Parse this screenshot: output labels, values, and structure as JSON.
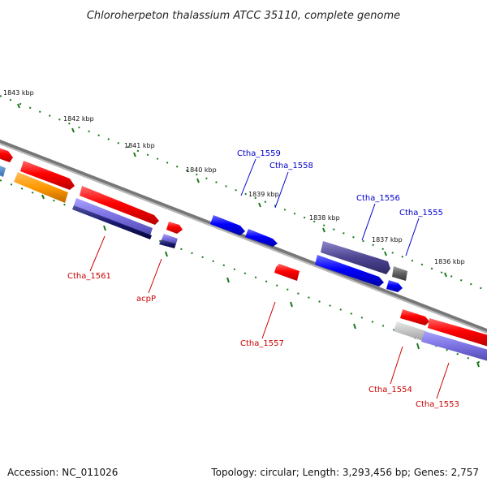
{
  "title": "Chloroherpeton thalassium ATCC 35110, complete genome",
  "ruler": {
    "ticks": [
      "1843 kbp",
      "1842 kbp",
      "1841 kbp",
      "1840 kbp",
      "1839 kbp",
      "1838 kbp",
      "1837 kbp",
      "1836 kbp"
    ]
  },
  "genes_forward": [
    "Ctha_1559",
    "Ctha_1558",
    "Ctha_1556",
    "Ctha_1555"
  ],
  "genes_reverse": [
    "Ctha_1561",
    "acpP",
    "Ctha_1557",
    "Ctha_1554",
    "Ctha_1553"
  ],
  "colors": {
    "label_forward": "#0000cc",
    "label_reverse": "#cc0000",
    "backbone": "#7a7a7a",
    "tick_green": "#1a7a1a"
  },
  "footer": {
    "accession": "Accession: NC_011026",
    "summary": "Topology: circular; Length: 3,293,456 bp; Genes: 2,757"
  }
}
